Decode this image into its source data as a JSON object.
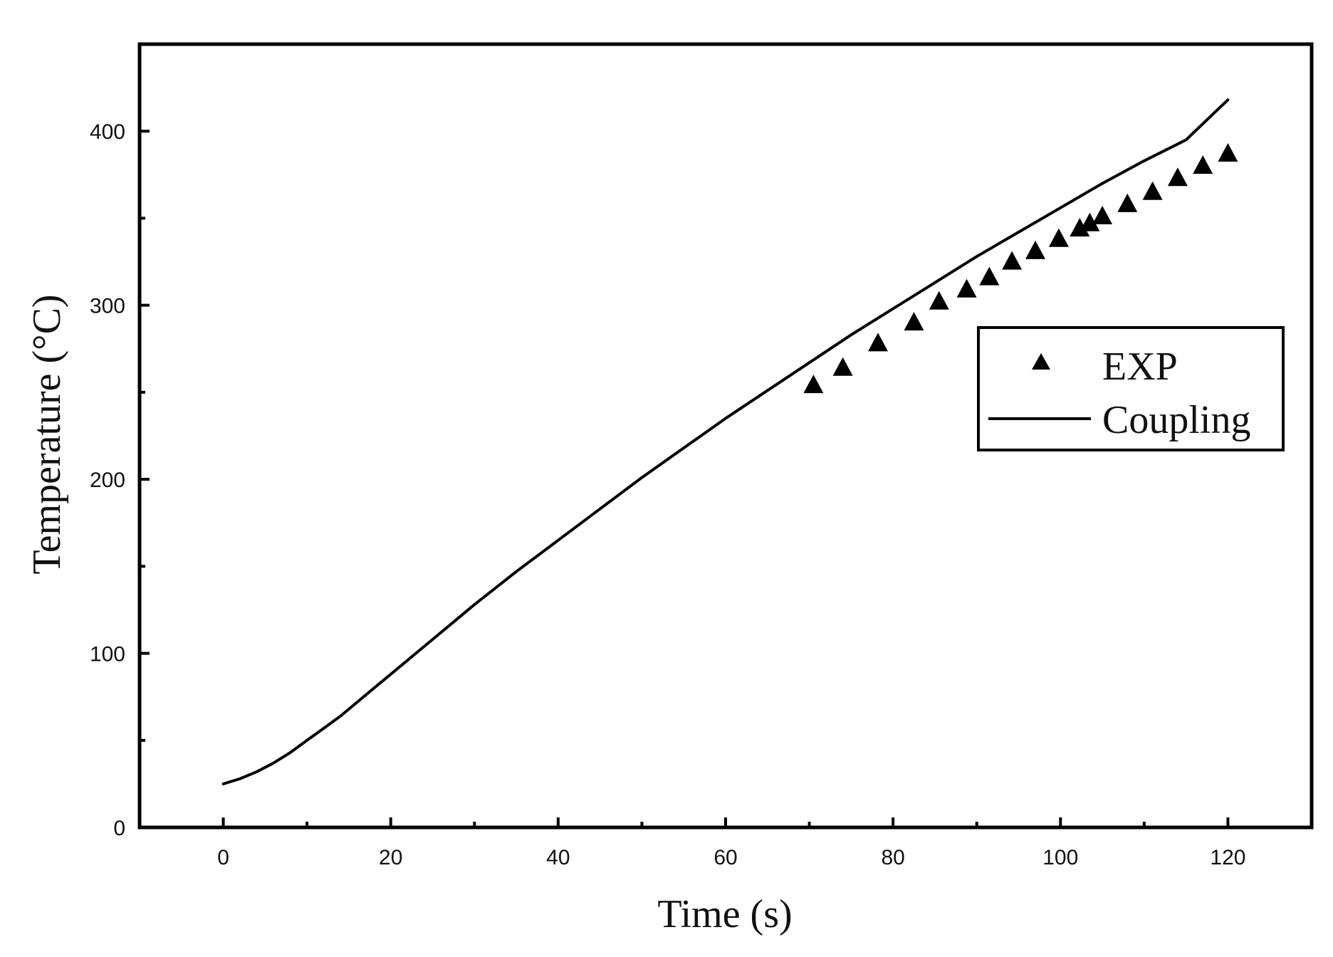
{
  "chart_data": {
    "type": "line",
    "title": "",
    "xlabel": "Time (s)",
    "ylabel": "Temperature (°C)",
    "xlim": [
      -10,
      130
    ],
    "ylim": [
      0,
      450
    ],
    "x_ticks": [
      0,
      20,
      40,
      60,
      80,
      100,
      120
    ],
    "x_tick_labels": [
      "0",
      "20",
      "40",
      "60",
      "80",
      "100",
      "120"
    ],
    "x_minor_ticks": [
      10,
      30,
      50,
      70,
      90,
      110
    ],
    "y_ticks": [
      0,
      100,
      200,
      300,
      400
    ],
    "y_tick_labels": [
      "0",
      "100",
      "200",
      "300",
      "400"
    ],
    "y_minor_ticks": [
      50,
      150,
      250,
      350
    ],
    "grid": false,
    "legend_position": "right",
    "series": [
      {
        "name": "EXP",
        "kind": "scatter",
        "marker": "triangle",
        "color": "#000000",
        "x": [
          70.5,
          74,
          78.2,
          82.5,
          85.5,
          88.8,
          91.5,
          94.2,
          97,
          99.8,
          102.3,
          103.5,
          105,
          108,
          111,
          114,
          117,
          120
        ],
        "y": [
          254,
          264,
          278,
          290,
          302,
          309,
          316,
          325,
          331,
          338,
          344,
          347,
          351,
          358,
          365,
          373,
          380,
          387
        ]
      },
      {
        "name": "Coupling",
        "kind": "line",
        "color": "#000000",
        "x": [
          0,
          2,
          4,
          6,
          8,
          10,
          12,
          14,
          16,
          18,
          20,
          25,
          30,
          35,
          40,
          45,
          50,
          55,
          60,
          65,
          70,
          75,
          80,
          85,
          90,
          95,
          100,
          105,
          110,
          115,
          120
        ],
        "y": [
          25,
          28,
          32,
          37,
          43,
          50,
          57,
          64,
          72,
          80,
          88,
          108,
          128,
          147,
          165,
          183,
          201,
          218,
          235,
          251,
          267,
          283,
          298,
          313,
          328,
          342,
          356,
          370,
          383,
          395,
          418
        ]
      }
    ]
  }
}
